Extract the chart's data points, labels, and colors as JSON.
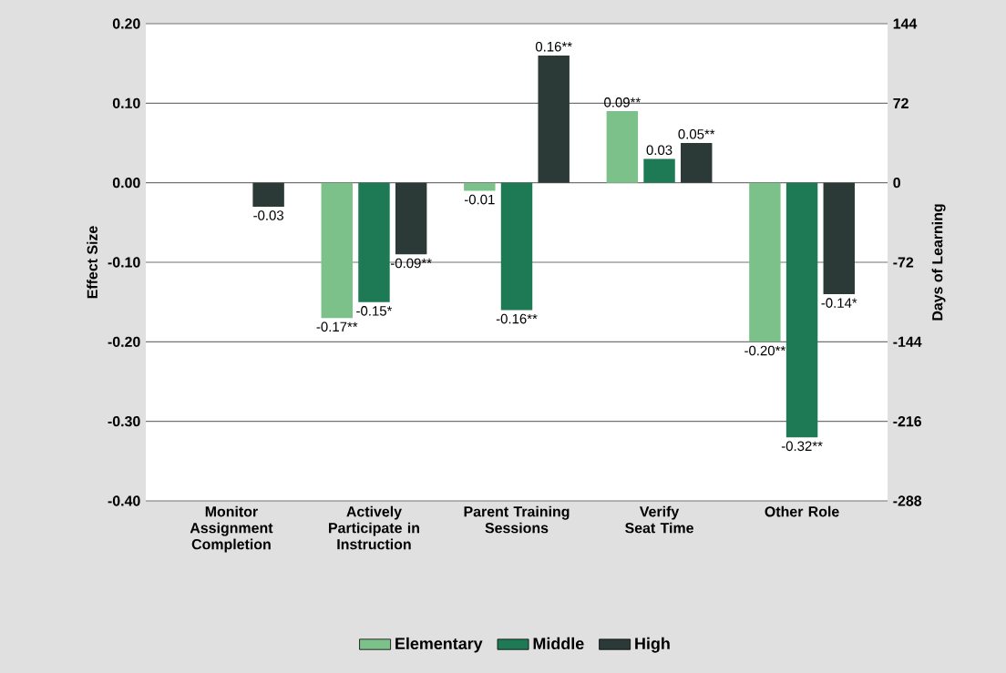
{
  "chart_data": {
    "type": "bar",
    "categories": [
      "Monitor Assignment Completion",
      "Actively Participate in Instruction",
      "Parent Training Sessions",
      "Verify Seat Time",
      "Other Role"
    ],
    "series": [
      {
        "name": "Elementary",
        "color": "#7dc18a",
        "values": [
          null,
          -0.17,
          -0.01,
          0.09,
          -0.2
        ],
        "value_labels": [
          null,
          "-0.17**",
          "-0.01",
          "0.09**",
          "-0.20**"
        ]
      },
      {
        "name": "Middle",
        "color": "#1e7a55",
        "values": [
          null,
          -0.15,
          -0.16,
          0.03,
          -0.32
        ],
        "value_labels": [
          null,
          "-0.15*",
          "-0.16**",
          "0.03",
          "-0.32**"
        ]
      },
      {
        "name": "High",
        "color": "#2b3a36",
        "values": [
          -0.03,
          -0.09,
          0.16,
          0.05,
          -0.14
        ],
        "value_labels": [
          "-0.03",
          "-0.09**",
          "0.16**",
          "0.05**",
          "-0.14*"
        ]
      }
    ],
    "ylabel": "Effect Size",
    "y2label": "Days of Learning",
    "ylim": [
      -0.4,
      0.2
    ],
    "yticks": [
      {
        "value": -0.4,
        "label": "-0.40"
      },
      {
        "value": -0.3,
        "label": "-0.30"
      },
      {
        "value": -0.2,
        "label": "-0.20"
      },
      {
        "value": -0.1,
        "label": "-0.10"
      },
      {
        "value": 0,
        "label": "0.00"
      },
      {
        "value": 0.1,
        "label": "0.10"
      },
      {
        "value": 0.2,
        "label": "0.20"
      }
    ],
    "y2lim": [
      -288,
      144
    ],
    "y2ticks": [
      -288,
      -216,
      -144,
      -72,
      0,
      72,
      144
    ],
    "grid": "y",
    "legend": "bottom"
  }
}
